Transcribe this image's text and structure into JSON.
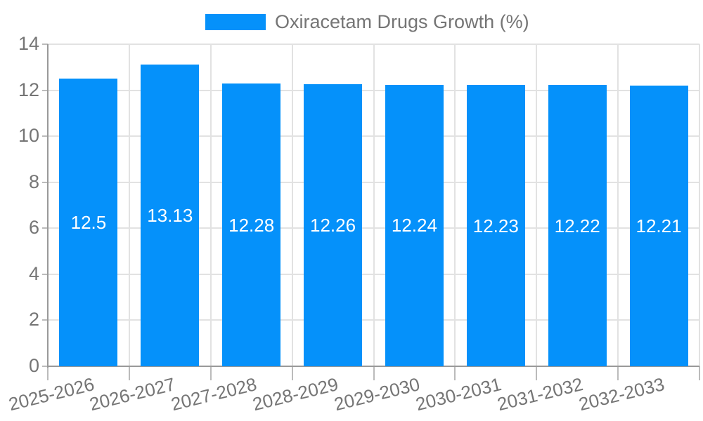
{
  "chart_data": {
    "type": "bar",
    "title": "Oxiracetam Drugs Growth (%)",
    "categories": [
      "2025-2026",
      "2026-2027",
      "2027-2028",
      "2028-2029",
      "2029-2030",
      "2030-2031",
      "2031-2032",
      "2032-2033"
    ],
    "values": [
      12.5,
      13.13,
      12.28,
      12.26,
      12.24,
      12.23,
      12.22,
      12.21
    ],
    "value_labels": [
      "12.5",
      "13.13",
      "12.28",
      "12.26",
      "12.24",
      "12.23",
      "12.22",
      "12.21"
    ],
    "xlabel": "",
    "ylabel": "",
    "ylim": [
      0,
      14
    ],
    "yticks": [
      0,
      2,
      4,
      6,
      8,
      10,
      12,
      14
    ],
    "grid": true,
    "legend_position": "top",
    "bar_label_position": "inside-center"
  },
  "legend": {
    "label": "Oxiracetam Drugs Growth (%)"
  },
  "colors": {
    "bar": "#0591fa",
    "bar_label_text": "#ffffff",
    "grid": "#e2e2e2",
    "axis": "#999999",
    "tick": "#bbbbbb",
    "axis_text": "#757575",
    "background": "#ffffff"
  }
}
